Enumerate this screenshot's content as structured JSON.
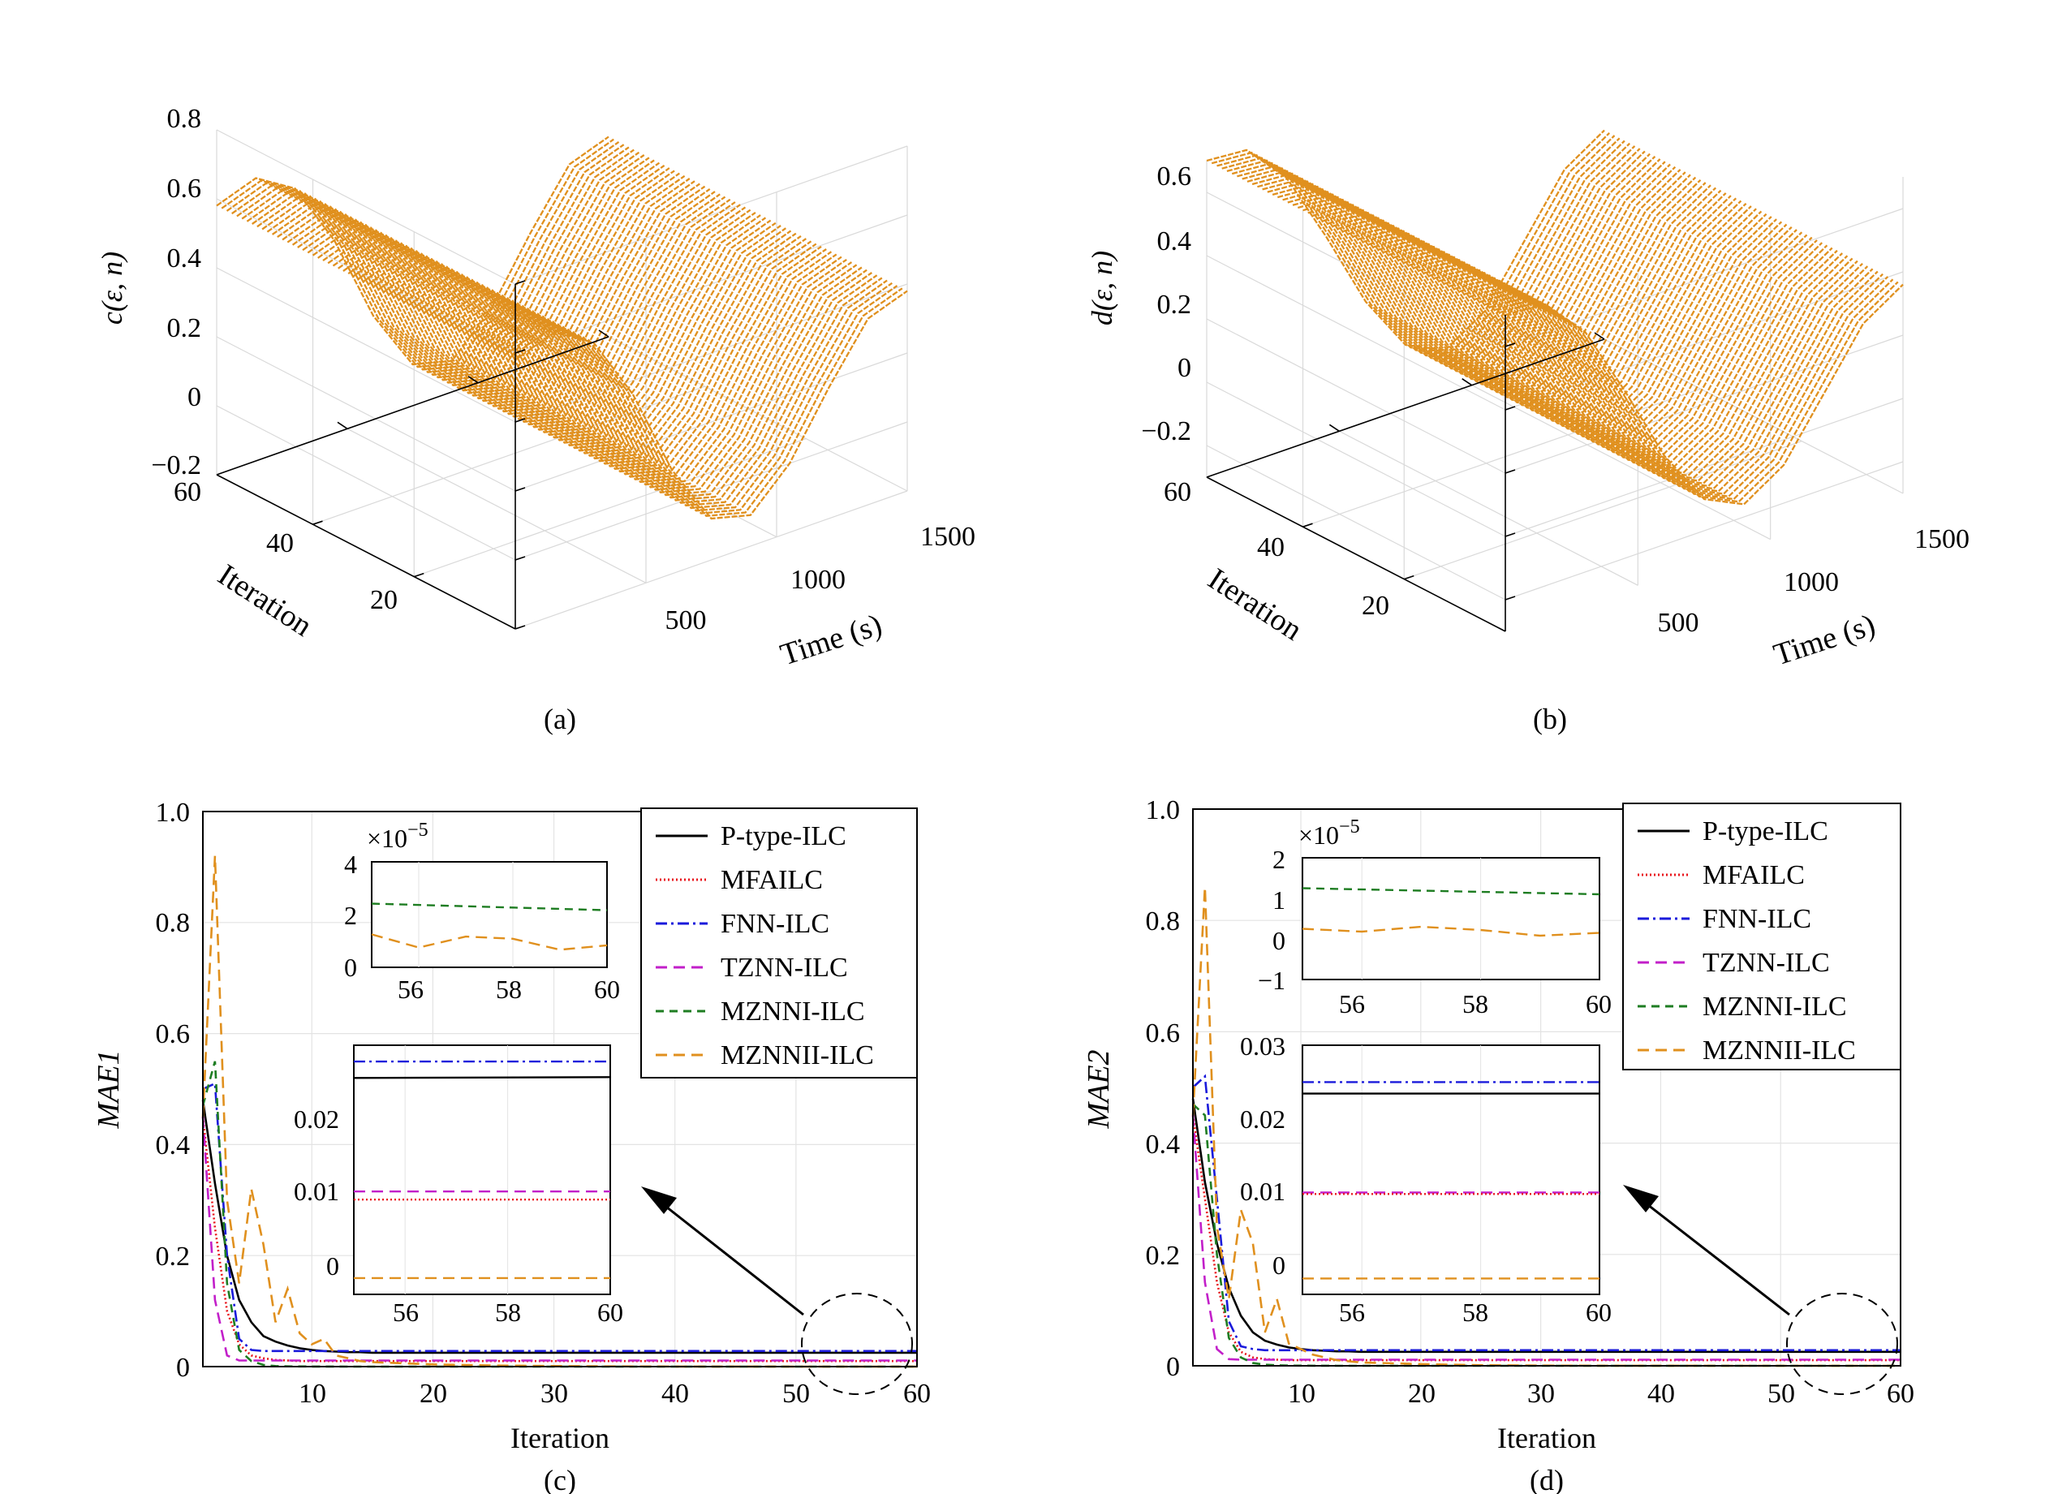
{
  "figure": {
    "panels": [
      {
        "id": "a",
        "caption": "(a)",
        "type": "surface3d",
        "zlabel": "c(ε, n)",
        "xlabel": "Time (s)",
        "ylabel": "Iteration",
        "zticks": [
          "0.8",
          "0.6",
          "0.4",
          "0.2",
          "0",
          "−0.2"
        ],
        "timeticks": [
          "500",
          "1000",
          "1500"
        ],
        "iterticks": [
          "60",
          "40",
          "20"
        ]
      },
      {
        "id": "b",
        "caption": "(b)",
        "type": "surface3d",
        "zlabel": "d(ε, n)",
        "xlabel": "Time (s)",
        "ylabel": "Iteration",
        "zticks": [
          "0.6",
          "0.4",
          "0.2",
          "0",
          "−0.2"
        ],
        "timeticks": [
          "500",
          "1000",
          "1500"
        ],
        "iterticks": [
          "60",
          "40",
          "20"
        ]
      },
      {
        "id": "c",
        "caption": "(c)",
        "type": "line",
        "ylabel": "MAE1",
        "xlabel": "Iteration",
        "yticks": [
          "0",
          "0.2",
          "0.4",
          "0.6",
          "0.8",
          "1.0"
        ],
        "xticks": [
          "10",
          "20",
          "30",
          "40",
          "50",
          "60"
        ],
        "inset_top": {
          "exponent": "×10",
          "exponent_power": "−5",
          "yticks": [
            "4",
            "2",
            "0"
          ],
          "xticks": [
            "56",
            "58",
            "60"
          ]
        },
        "inset_bottom": {
          "yticks": [
            "0.02",
            "0.01",
            "0"
          ],
          "xticks": [
            "56",
            "58",
            "60"
          ]
        }
      },
      {
        "id": "d",
        "caption": "(d)",
        "type": "line",
        "ylabel": "MAE2",
        "xlabel": "Iteration",
        "yticks": [
          "0",
          "0.2",
          "0.4",
          "0.6",
          "0.8",
          "1.0"
        ],
        "xticks": [
          "10",
          "20",
          "30",
          "40",
          "50",
          "60"
        ],
        "inset_top": {
          "exponent": "×10",
          "exponent_power": "−5",
          "yticks": [
            "2",
            "1",
            "0",
            "−1"
          ],
          "xticks": [
            "56",
            "58",
            "60"
          ]
        },
        "inset_bottom": {
          "yticks": [
            "0.03",
            "0.02",
            "0.01",
            "0"
          ],
          "xticks": [
            "56",
            "58",
            "60"
          ]
        }
      }
    ],
    "legend": [
      "P-type-ILC",
      "MFAILC",
      "FNN-ILC",
      "TZNN-ILC",
      "MZNNI-ILC",
      "MZNNII-ILC"
    ],
    "colors": {
      "P-type-ILC": "#000000",
      "MFAILC": "#e8141b",
      "FNN-ILC": "#1a1adb",
      "TZNN-ILC": "#c21fc9",
      "MZNNI-ILC": "#1e7d22",
      "MZNNII-ILC": "#e0901e",
      "surface": "#e0901e"
    }
  },
  "chart_data": [
    {
      "type": "surface",
      "title": "",
      "xlabel": "Time (s)",
      "ylabel": "Iteration",
      "zlabel": "c(ε, n)",
      "xlim": [
        0,
        1500
      ],
      "ylim": [
        1,
        60
      ],
      "zlim": [
        -0.2,
        0.8
      ],
      "time": [
        0,
        150,
        300,
        450,
        600,
        750,
        900,
        1050,
        1200,
        1350,
        1500
      ],
      "values": [
        0.58,
        0.62,
        0.55,
        0.36,
        0.1,
        -0.08,
        -0.11,
        0.0,
        0.18,
        0.34,
        0.38
      ],
      "note_iterations": "same profile repeated for iterations 1–60"
    },
    {
      "type": "surface",
      "title": "",
      "xlabel": "Time (s)",
      "ylabel": "Iteration",
      "zlabel": "d(ε, n)",
      "xlim": [
        0,
        1500
      ],
      "ylim": [
        1,
        60
      ],
      "zlim": [
        -0.3,
        0.7
      ],
      "time": [
        0,
        150,
        300,
        450,
        600,
        750,
        900,
        1050,
        1200,
        1350,
        1500
      ],
      "values": [
        0.7,
        0.69,
        0.56,
        0.33,
        0.08,
        -0.1,
        -0.16,
        -0.08,
        0.1,
        0.28,
        0.36
      ]
    },
    {
      "type": "line",
      "title": "",
      "xlabel": "Iteration",
      "ylabel": "MAE1",
      "xlim": [
        1,
        60
      ],
      "ylim": [
        0,
        1.0
      ],
      "x": [
        1,
        2,
        3,
        4,
        5,
        6,
        7,
        8,
        9,
        10,
        11,
        12,
        13,
        14,
        15,
        20,
        25,
        30,
        35,
        40,
        45,
        50,
        55,
        60
      ],
      "series": [
        {
          "name": "P-type-ILC",
          "values": [
            0.48,
            0.33,
            0.2,
            0.12,
            0.08,
            0.055,
            0.045,
            0.038,
            0.033,
            0.03,
            0.028,
            0.027,
            0.026,
            0.026,
            0.025,
            0.025,
            0.025,
            0.025,
            0.025,
            0.025,
            0.025,
            0.025,
            0.025,
            0.025
          ]
        },
        {
          "name": "MFAILC",
          "values": [
            0.45,
            0.25,
            0.1,
            0.04,
            0.02,
            0.015,
            0.012,
            0.011,
            0.01,
            0.01,
            0.01,
            0.01,
            0.01,
            0.01,
            0.01,
            0.01,
            0.01,
            0.01,
            0.01,
            0.01,
            0.01,
            0.01,
            0.01,
            0.01
          ]
        },
        {
          "name": "FNN-ILC",
          "values": [
            0.5,
            0.51,
            0.2,
            0.05,
            0.03,
            0.028,
            0.028,
            0.028,
            0.028,
            0.028,
            0.028,
            0.028,
            0.028,
            0.028,
            0.028,
            0.028,
            0.028,
            0.028,
            0.028,
            0.028,
            0.028,
            0.028,
            0.028,
            0.028
          ]
        },
        {
          "name": "TZNN-ILC",
          "values": [
            0.45,
            0.12,
            0.02,
            0.011,
            0.011,
            0.011,
            0.011,
            0.011,
            0.011,
            0.011,
            0.011,
            0.011,
            0.011,
            0.011,
            0.011,
            0.011,
            0.011,
            0.011,
            0.011,
            0.011,
            0.011,
            0.011,
            0.011,
            0.011
          ]
        },
        {
          "name": "MZNNI-ILC",
          "values": [
            0.47,
            0.55,
            0.15,
            0.03,
            0.01,
            0.003,
            0.001,
            0.0005,
            0.0003,
            0.0002,
            0.0001,
            0.0001,
            5e-05,
            4e-05,
            3e-05,
            3e-05,
            2e-05,
            2e-05,
            2e-05,
            2e-05,
            2e-05,
            2e-05,
            2e-05,
            2e-05
          ]
        },
        {
          "name": "MZNNII-ILC",
          "values": [
            0.45,
            0.92,
            0.3,
            0.15,
            0.32,
            0.22,
            0.08,
            0.14,
            0.06,
            0.04,
            0.05,
            0.02,
            0.015,
            0.01,
            0.008,
            0.004,
            0.002,
            0.001,
            0.0005,
            0.0002,
            0.0001,
            5e-05,
            1e-05,
            5e-06
          ]
        }
      ]
    },
    {
      "type": "line",
      "title": "",
      "xlabel": "Iteration",
      "ylabel": "MAE2",
      "xlim": [
        1,
        60
      ],
      "ylim": [
        0,
        1.0
      ],
      "x": [
        1,
        2,
        3,
        4,
        5,
        6,
        7,
        8,
        9,
        10,
        11,
        12,
        13,
        14,
        15,
        20,
        25,
        30,
        35,
        40,
        45,
        50,
        55,
        60
      ],
      "series": [
        {
          "name": "P-type-ILC",
          "values": [
            0.48,
            0.33,
            0.22,
            0.14,
            0.09,
            0.06,
            0.045,
            0.038,
            0.033,
            0.03,
            0.028,
            0.027,
            0.026,
            0.026,
            0.025,
            0.025,
            0.025,
            0.025,
            0.025,
            0.025,
            0.025,
            0.025,
            0.025,
            0.025
          ]
        },
        {
          "name": "MFAILC",
          "values": [
            0.45,
            0.3,
            0.15,
            0.06,
            0.025,
            0.015,
            0.012,
            0.011,
            0.01,
            0.01,
            0.01,
            0.01,
            0.01,
            0.01,
            0.01,
            0.01,
            0.01,
            0.01,
            0.01,
            0.01,
            0.01,
            0.01,
            0.01,
            0.01
          ]
        },
        {
          "name": "FNN-ILC",
          "values": [
            0.5,
            0.52,
            0.3,
            0.08,
            0.035,
            0.03,
            0.028,
            0.028,
            0.028,
            0.028,
            0.028,
            0.028,
            0.028,
            0.028,
            0.028,
            0.028,
            0.028,
            0.028,
            0.028,
            0.028,
            0.028,
            0.028,
            0.028,
            0.028
          ]
        },
        {
          "name": "TZNN-ILC",
          "values": [
            0.45,
            0.15,
            0.03,
            0.012,
            0.011,
            0.011,
            0.011,
            0.011,
            0.011,
            0.011,
            0.011,
            0.011,
            0.011,
            0.011,
            0.011,
            0.011,
            0.011,
            0.011,
            0.011,
            0.011,
            0.011,
            0.011,
            0.011,
            0.011
          ]
        },
        {
          "name": "MZNNI-ILC",
          "values": [
            0.47,
            0.45,
            0.2,
            0.05,
            0.015,
            0.005,
            0.002,
            0.001,
            0.0005,
            0.0003,
            0.0002,
            0.0001,
            5e-05,
            4e-05,
            3e-05,
            2e-05,
            2e-05,
            1e-05,
            1e-05,
            1e-05,
            1e-05,
            1e-05,
            1e-05,
            1e-05
          ]
        },
        {
          "name": "MZNNII-ILC",
          "values": [
            0.45,
            0.86,
            0.25,
            0.12,
            0.28,
            0.22,
            0.06,
            0.12,
            0.04,
            0.03,
            0.02,
            0.015,
            0.01,
            0.008,
            0.006,
            0.003,
            0.001,
            0.0005,
            0.0002,
            0.0001,
            5e-05,
            1e-05,
            5e-06,
            2e-06
          ]
        }
      ]
    }
  ]
}
